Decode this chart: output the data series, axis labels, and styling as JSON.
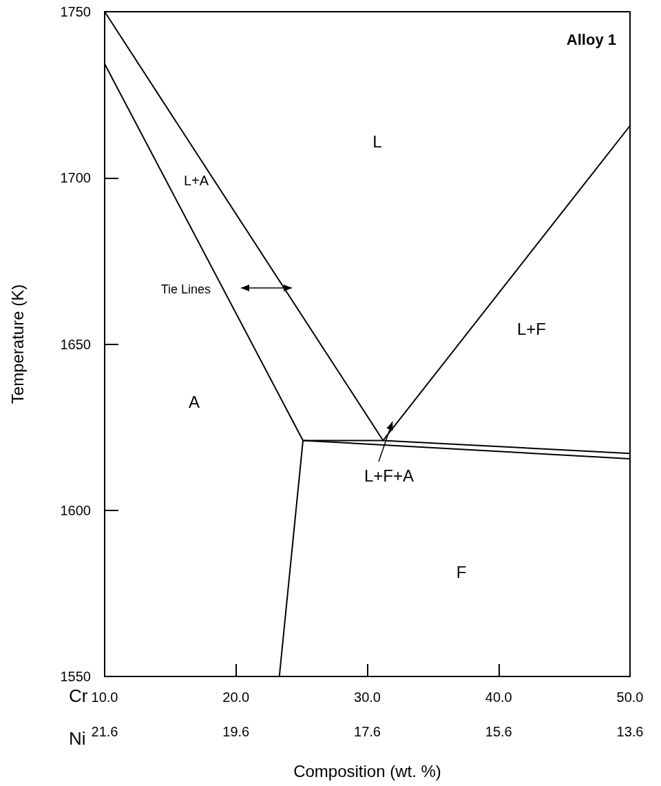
{
  "chart_data": {
    "type": "line",
    "ylabel": "Temperature (K)",
    "xlabel": "Composition (wt. %)",
    "xlim": [
      10,
      50
    ],
    "xticks": [
      {
        "value": 10,
        "label": "10.0"
      },
      {
        "value": 20,
        "label": "20.0"
      },
      {
        "value": 30,
        "label": "30.0"
      },
      {
        "value": 40,
        "label": "40.0"
      },
      {
        "value": 50,
        "label": "50.0"
      }
    ],
    "x2lim": [
      21.6,
      13.6
    ],
    "x2ticks": [
      21.6,
      19.6,
      17.6,
      15.6,
      13.6
    ],
    "ylim": [
      1550,
      1750
    ],
    "yticks": [
      1550,
      1600,
      1650,
      1700,
      1750
    ],
    "series": [
      {
        "x": [
          10,
          31.2
        ],
        "values": [
          1750,
          1621
        ],
        "color": "#000000"
      },
      {
        "x": [
          10,
          25.1
        ],
        "values": [
          1734.3,
          1621
        ],
        "color": "#000000"
      },
      {
        "x": [
          31.2,
          50
        ],
        "values": [
          1621,
          1715.7
        ],
        "color": "#000000"
      },
      {
        "x": [
          25.1,
          31.2,
          50
        ],
        "values": [
          1621,
          1621,
          1617.1
        ],
        "color": "#000000"
      },
      {
        "x": [
          25.1,
          50
        ],
        "values": [
          1621,
          1615.5
        ],
        "color": "#000000"
      },
      {
        "x": [
          25.1,
          23.3
        ],
        "values": [
          1621,
          1550
        ],
        "color": "#000000"
      }
    ],
    "annotations": [
      "Alloy 1",
      "Cr",
      "Ni",
      "L",
      "L+A",
      "A",
      "L+F",
      "F",
      "Tie Lines",
      "L+F+A"
    ]
  }
}
